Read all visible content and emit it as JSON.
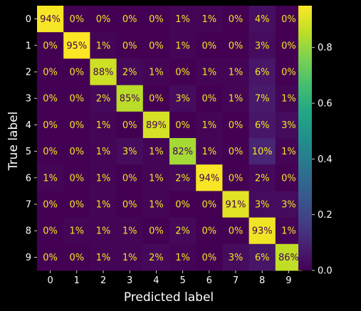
{
  "chart_data": {
    "type": "heatmap",
    "title": "",
    "xlabel": "Predicted label",
    "ylabel": "True label",
    "x_ticks": [
      "0",
      "1",
      "2",
      "3",
      "4",
      "5",
      "6",
      "7",
      "8",
      "9"
    ],
    "y_ticks": [
      "0",
      "1",
      "2",
      "3",
      "4",
      "5",
      "6",
      "7",
      "8",
      "9"
    ],
    "values": [
      [
        0.94,
        0.0,
        0.0,
        0.0,
        0.0,
        0.01,
        0.01,
        0.0,
        0.04,
        0.0
      ],
      [
        0.0,
        0.95,
        0.01,
        0.0,
        0.0,
        0.01,
        0.0,
        0.0,
        0.03,
        0.0
      ],
      [
        0.0,
        0.0,
        0.88,
        0.02,
        0.01,
        0.0,
        0.01,
        0.01,
        0.06,
        0.0
      ],
      [
        0.0,
        0.0,
        0.02,
        0.85,
        0.0,
        0.03,
        0.0,
        0.01,
        0.07,
        0.01
      ],
      [
        0.0,
        0.0,
        0.01,
        0.0,
        0.89,
        0.0,
        0.01,
        0.0,
        0.06,
        0.03
      ],
      [
        0.0,
        0.0,
        0.01,
        0.03,
        0.01,
        0.82,
        0.01,
        0.0,
        0.1,
        0.01
      ],
      [
        0.01,
        0.0,
        0.01,
        0.0,
        0.01,
        0.02,
        0.94,
        0.0,
        0.02,
        0.0
      ],
      [
        0.0,
        0.0,
        0.01,
        0.0,
        0.01,
        0.0,
        0.0,
        0.91,
        0.03,
        0.03
      ],
      [
        0.0,
        0.01,
        0.01,
        0.01,
        0.0,
        0.02,
        0.0,
        0.0,
        0.93,
        0.01
      ],
      [
        0.0,
        0.0,
        0.01,
        0.01,
        0.02,
        0.01,
        0.0,
        0.03,
        0.06,
        0.86
      ]
    ],
    "cell_labels": [
      [
        "94%",
        "0%",
        "0%",
        "0%",
        "0%",
        "1%",
        "1%",
        "0%",
        "4%",
        "0%"
      ],
      [
        "0%",
        "95%",
        "1%",
        "0%",
        "0%",
        "1%",
        "0%",
        "0%",
        "3%",
        "0%"
      ],
      [
        "0%",
        "0%",
        "88%",
        "2%",
        "1%",
        "0%",
        "1%",
        "1%",
        "6%",
        "0%"
      ],
      [
        "0%",
        "0%",
        "2%",
        "85%",
        "0%",
        "3%",
        "0%",
        "1%",
        "7%",
        "1%"
      ],
      [
        "0%",
        "0%",
        "1%",
        "0%",
        "89%",
        "0%",
        "1%",
        "0%",
        "6%",
        "3%"
      ],
      [
        "0%",
        "0%",
        "1%",
        "3%",
        "1%",
        "82%",
        "1%",
        "0%",
        "10%",
        "1%"
      ],
      [
        "1%",
        "0%",
        "1%",
        "0%",
        "1%",
        "2%",
        "94%",
        "0%",
        "2%",
        "0%"
      ],
      [
        "0%",
        "0%",
        "1%",
        "0%",
        "1%",
        "0%",
        "0%",
        "91%",
        "3%",
        "3%"
      ],
      [
        "0%",
        "1%",
        "1%",
        "1%",
        "0%",
        "2%",
        "0%",
        "0%",
        "93%",
        "1%"
      ],
      [
        "0%",
        "0%",
        "1%",
        "1%",
        "2%",
        "1%",
        "0%",
        "3%",
        "6%",
        "86%"
      ]
    ],
    "colormap": "viridis",
    "colorbar": {
      "range": [
        0.0,
        0.95
      ],
      "ticks": [
        0.0,
        0.2,
        0.4,
        0.6,
        0.8
      ],
      "tick_labels": [
        "0.0",
        "0.2",
        "0.4",
        "0.6",
        "0.8"
      ]
    },
    "grid": false,
    "background": "#000000",
    "text_color_dark_cells": "#f5e61e",
    "text_color_bright_cells": "#440154"
  }
}
